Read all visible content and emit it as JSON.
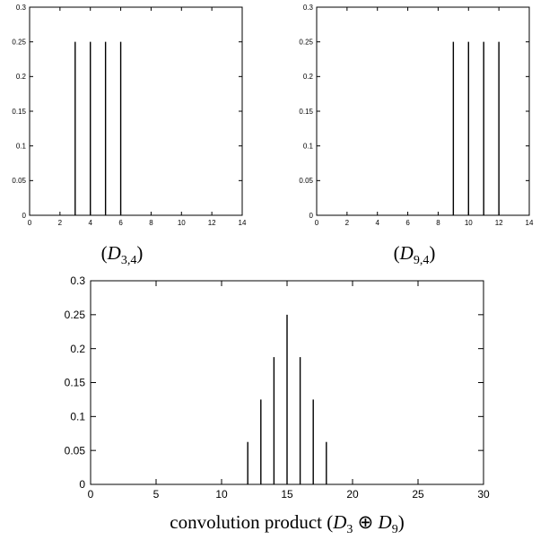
{
  "chart_data": [
    {
      "type": "bar",
      "caption": "(D3,4)",
      "caption_parts": {
        "open": "(",
        "sym": "D",
        "sub": "3,4",
        "close": ")"
      },
      "x": [
        3,
        4,
        5,
        6
      ],
      "values": [
        0.25,
        0.25,
        0.25,
        0.25
      ],
      "xlim": [
        0,
        14
      ],
      "ylim": [
        0,
        0.3
      ],
      "xticks": [
        "0",
        "2",
        "4",
        "6",
        "8",
        "10",
        "12",
        "14"
      ],
      "yticks": [
        "0",
        "0.05",
        "0.1",
        "0.15",
        "0.2",
        "0.25",
        "0.3"
      ],
      "grid": false
    },
    {
      "type": "bar",
      "caption": "(D9,4)",
      "caption_parts": {
        "open": "(",
        "sym": "D",
        "sub": "9,4",
        "close": ")"
      },
      "x": [
        9,
        10,
        11,
        12
      ],
      "values": [
        0.25,
        0.25,
        0.25,
        0.25
      ],
      "xlim": [
        0,
        14
      ],
      "ylim": [
        0,
        0.3
      ],
      "xticks": [
        "0",
        "2",
        "4",
        "6",
        "8",
        "10",
        "12",
        "14"
      ],
      "yticks": [
        "0",
        "0.05",
        "0.1",
        "0.15",
        "0.2",
        "0.25",
        "0.3"
      ],
      "grid": false
    },
    {
      "type": "bar",
      "caption": "convolution product (D3 ⊕ D9)",
      "caption_parts": {
        "prefix": "convolution product (",
        "sym1": "D",
        "sub1": "3",
        "op": " ⊕ ",
        "sym2": "D",
        "sub2": "9",
        "close": ")"
      },
      "x": [
        12,
        13,
        14,
        15,
        16,
        17,
        18
      ],
      "values": [
        0.0625,
        0.125,
        0.1875,
        0.25,
        0.1875,
        0.125,
        0.0625
      ],
      "xlim": [
        0,
        30
      ],
      "ylim": [
        0,
        0.3
      ],
      "xticks": [
        "0",
        "5",
        "10",
        "15",
        "20",
        "25",
        "30"
      ],
      "yticks": [
        "0",
        "0.05",
        "0.1",
        "0.15",
        "0.2",
        "0.25",
        "0.3"
      ],
      "grid": false
    }
  ]
}
